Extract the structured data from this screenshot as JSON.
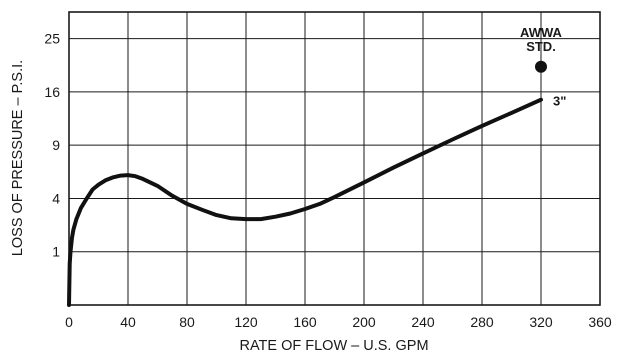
{
  "chart_data": {
    "type": "line",
    "title": "",
    "xlabel": "RATE OF FLOW – U.S. GPM",
    "ylabel": "LOSS OF PRESSURE – P.S.I.",
    "x_ticks": [
      0,
      40,
      80,
      120,
      160,
      200,
      240,
      280,
      320,
      360
    ],
    "y_ticks": [
      1,
      4,
      9,
      16,
      25
    ],
    "y_scale": "sqrt",
    "xlim": [
      0,
      360
    ],
    "ylim": [
      0,
      30.25
    ],
    "grid": true,
    "series": [
      {
        "name": "3\"",
        "x": [
          0,
          0.5,
          1,
          2,
          3,
          5,
          8,
          12,
          16,
          20,
          25,
          30,
          35,
          40,
          45,
          50,
          60,
          70,
          80,
          90,
          100,
          110,
          120,
          130,
          140,
          150,
          160,
          170,
          180,
          200,
          220,
          240,
          260,
          280,
          300,
          320
        ],
        "y": [
          0,
          0.6,
          1.0,
          1.6,
          2.0,
          2.6,
          3.3,
          4.0,
          4.7,
          5.1,
          5.5,
          5.75,
          5.9,
          5.95,
          5.85,
          5.6,
          5.0,
          4.2,
          3.6,
          3.2,
          2.85,
          2.65,
          2.6,
          2.6,
          2.75,
          2.95,
          3.25,
          3.6,
          4.1,
          5.3,
          6.65,
          8.1,
          9.65,
          11.3,
          13.0,
          14.85
        ]
      }
    ],
    "points": [
      {
        "label": "AWWA STD.",
        "x": 320,
        "y": 20
      }
    ],
    "annotations": {
      "series_label": "3\"",
      "point_label_line1": "AWWA",
      "point_label_line2": "STD."
    }
  }
}
